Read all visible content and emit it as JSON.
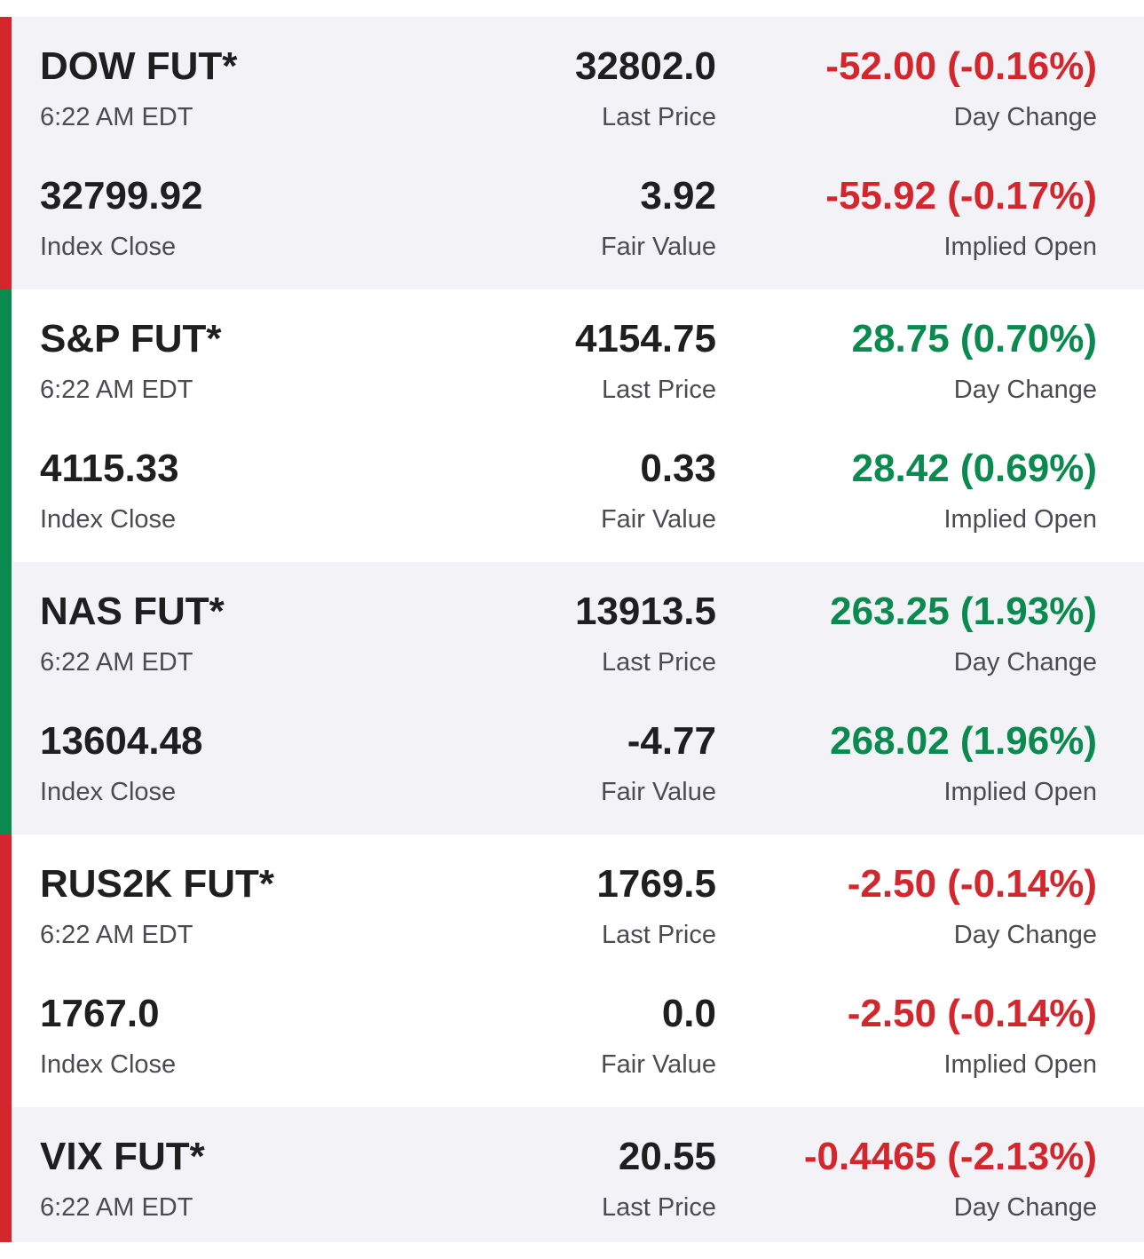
{
  "colors": {
    "negative": "#d3262d",
    "positive": "#0a8a4f",
    "row_shaded": "#f3f3f7",
    "row_plain": "#ffffff"
  },
  "rows": [
    {
      "name": "DOW FUT*",
      "time": "6:22 AM EDT",
      "last_price": "32802.0",
      "last_price_label": "Last Price",
      "day_change": "-52.00 (-0.16%)",
      "day_change_label": "Day Change",
      "index_close": "32799.92",
      "index_close_label": "Index Close",
      "fair_value": "3.92",
      "fair_value_label": "Fair Value",
      "implied_open": "-55.92 (-0.17%)",
      "implied_open_label": "Implied Open",
      "direction": "down"
    },
    {
      "name": "S&P FUT*",
      "time": "6:22 AM EDT",
      "last_price": "4154.75",
      "last_price_label": "Last Price",
      "day_change": "28.75 (0.70%)",
      "day_change_label": "Day Change",
      "index_close": "4115.33",
      "index_close_label": "Index Close",
      "fair_value": "0.33",
      "fair_value_label": "Fair Value",
      "implied_open": "28.42 (0.69%)",
      "implied_open_label": "Implied Open",
      "direction": "up"
    },
    {
      "name": "NAS FUT*",
      "time": "6:22 AM EDT",
      "last_price": "13913.5",
      "last_price_label": "Last Price",
      "day_change": "263.25 (1.93%)",
      "day_change_label": "Day Change",
      "index_close": "13604.48",
      "index_close_label": "Index Close",
      "fair_value": "-4.77",
      "fair_value_label": "Fair Value",
      "implied_open": "268.02 (1.96%)",
      "implied_open_label": "Implied Open",
      "direction": "up"
    },
    {
      "name": "RUS2K FUT*",
      "time": "6:22 AM EDT",
      "last_price": "1769.5",
      "last_price_label": "Last Price",
      "day_change": "-2.50 (-0.14%)",
      "day_change_label": "Day Change",
      "index_close": "1767.0",
      "index_close_label": "Index Close",
      "fair_value": "0.0",
      "fair_value_label": "Fair Value",
      "implied_open": "-2.50 (-0.14%)",
      "implied_open_label": "Implied Open",
      "direction": "down"
    },
    {
      "name": "VIX FUT*",
      "time": "6:22 AM EDT",
      "last_price": "20.55",
      "last_price_label": "Last Price",
      "day_change": "-0.4465 (-2.13%)",
      "day_change_label": "Day Change",
      "direction": "down"
    }
  ]
}
